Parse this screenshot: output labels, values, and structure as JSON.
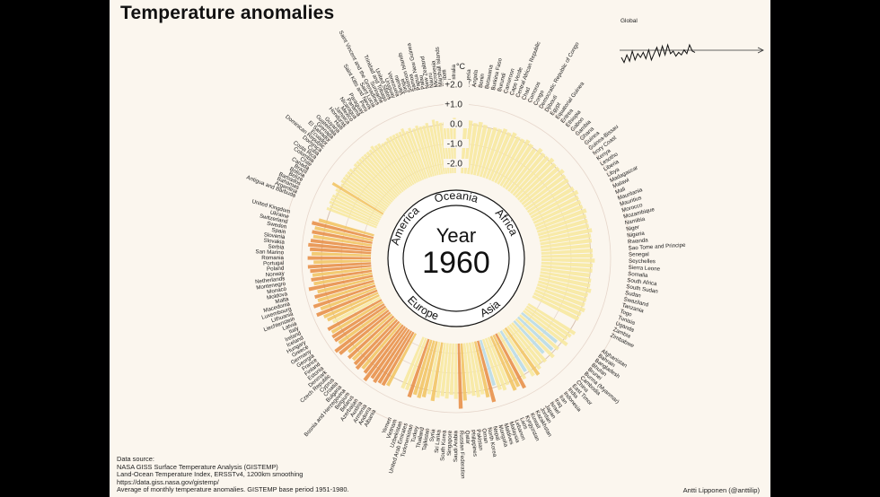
{
  "title": "Temperature anomalies",
  "source": {
    "heading": "Data source:",
    "lines": [
      "NASA GISS Surface Temperature Analysis (GISTEMP)",
      "Land-Ocean Temperature Index, ERSSTv4, 1200km smoothing",
      "https://data.giss.nasa.gov/gistemp/",
      "Average of monthly temperature anomalies. GISTEMP base period 1951-1980."
    ]
  },
  "credit": "Antti Lipponen (@anttilip)",
  "global_label": "Global",
  "colors": {
    "background": "#fbf6ee",
    "warm_light": "#f7e9a0",
    "warm": "#f2c565",
    "hot": "#e8914a",
    "cool": "#b9dce6"
  },
  "chart_data": {
    "type": "radial-bar",
    "center_label": "Year",
    "year": "1960",
    "unit": "°C",
    "ticks": [
      "+2.0",
      "+1.0",
      "0.0",
      "-1.0",
      "-2.0"
    ],
    "tick_values": [
      2,
      1,
      0,
      -1,
      -2
    ],
    "ylim": [
      -2.5,
      2.5
    ],
    "regions": [
      "Oceania",
      "Africa",
      "Asia",
      "Europe",
      "America"
    ],
    "countries": {
      "Oceania": [
        "Vanuatu",
        "Tonga",
        "Solomon Islands",
        "Samoa",
        "Papua New Guinea",
        "Palau",
        "New Zealand",
        "Nauru",
        "Micronesia",
        "Marshall Islands",
        "Kiribati",
        "Fiji",
        "Australia"
      ],
      "Africa": [
        "Algeria",
        "Angola",
        "Benin",
        "Botswana",
        "Burkina Faso",
        "Burundi",
        "Cameroon",
        "Cape Verde",
        "Central African Republic",
        "Chad",
        "Comoros",
        "Congo",
        "Democratic Republic of Congo",
        "Djibouti",
        "Egypt",
        "Equatorial Guinea",
        "Eritrea",
        "Ethiopia",
        "Gabon",
        "Gambia",
        "Ghana",
        "Guinea",
        "Guinea-Bissau",
        "Ivory Coast",
        "Kenya",
        "Lesotho",
        "Liberia",
        "Libya",
        "Madagascar",
        "Malawi",
        "Mali",
        "Mauritania",
        "Mauritius",
        "Morocco",
        "Mozambique",
        "Namibia",
        "Niger",
        "Nigeria",
        "Rwanda",
        "Sao Tome and Principe",
        "Senegal",
        "Seychelles",
        "Sierra Leone",
        "Somalia",
        "South Africa",
        "South Sudan",
        "Sudan",
        "Swaziland",
        "Tanzania",
        "Togo",
        "Tunisia",
        "Uganda",
        "Zambia",
        "Zimbabwe"
      ],
      "Asia": [
        "Afghanistan",
        "Bahrain",
        "Bangladesh",
        "Bhutan",
        "Brunei",
        "Burma (Myanmar)",
        "Cambodia",
        "China",
        "East Timor",
        "India",
        "Indonesia",
        "Iran",
        "Iraq",
        "Israel",
        "Japan",
        "Jordan",
        "Kazakhstan",
        "Kuwait",
        "Kyrgyzstan",
        "Laos",
        "Lebanon",
        "Malaysia",
        "Maldives",
        "Mongolia",
        "Nepal",
        "North Korea",
        "Oman",
        "Pakistan",
        "Philippines",
        "Qatar",
        "Russian Federation",
        "Saudi Arabia",
        "Singapore",
        "South Korea",
        "Sri Lanka",
        "Syria",
        "Tajikistan",
        "Thailand",
        "Turkey",
        "Turkmenistan",
        "United Arab Emirates",
        "Uzbekistan",
        "Vietnam",
        "Yemen"
      ],
      "Europe": [
        "Albania",
        "Andorra",
        "Armenia",
        "Austria",
        "Azerbaijan",
        "Belarus",
        "Belgium",
        "Bosnia and Herzegovina",
        "Bulgaria",
        "Croatia",
        "Cyprus",
        "Czech Republic",
        "Denmark",
        "Estonia",
        "Finland",
        "France",
        "Georgia",
        "Germany",
        "Greece",
        "Hungary",
        "Iceland",
        "Ireland",
        "Italy",
        "Latvia",
        "Liechtenstein",
        "Lithuania",
        "Luxembourg",
        "Macedonia",
        "Malta",
        "Moldova",
        "Monaco",
        "Montenegro",
        "Netherlands",
        "Norway",
        "Poland",
        "Portugal",
        "Romania",
        "San Marino",
        "Serbia",
        "Slovakia",
        "Slovenia",
        "Spain",
        "Sweden",
        "Switzerland",
        "Ukraine",
        "United Kingdom"
      ],
      "America": [
        "Antigua and Barbuda",
        "Argentina",
        "Bahamas",
        "Barbados",
        "Belize",
        "Bolivia",
        "Brazil",
        "Canada",
        "Chile",
        "Colombia",
        "Costa Rica",
        "Cuba",
        "Dominica",
        "Dominican Republic",
        "Ecuador",
        "El Salvador",
        "Grenada",
        "Guatemala",
        "Guyana",
        "Haiti",
        "Honduras",
        "Jamaica",
        "Mexico",
        "Nicaragua",
        "Panama",
        "Paraguay",
        "Peru",
        "Saint Kitts and Nevis",
        "Saint Lucia",
        "Saint Vincent and the Grenadines",
        "Suriname",
        "Trinidad and Tobago",
        "United States",
        "Uruguay",
        "Venezuela"
      ]
    },
    "anomalies_note_values": {
      "Oceania": [
        0.1,
        0.2,
        0.1,
        0.1,
        0.2,
        0.0,
        0.3,
        0.2,
        0.1,
        0.1,
        0.1,
        0.2,
        0.3
      ],
      "Africa": [
        0.1,
        0.2,
        0.1,
        0.2,
        0.1,
        0.0,
        0.1,
        0.1,
        0.2,
        0.1,
        0.2,
        0.1,
        0.1,
        0.2,
        0.1,
        0.0,
        0.2,
        0.1,
        0.1,
        0.2,
        0.1,
        0.1,
        0.2,
        0.1,
        0.1,
        0.0,
        0.1,
        0.2,
        0.1,
        0.1,
        0.1,
        0.2,
        0.1,
        0.1,
        0.1,
        0.2,
        0.1,
        0.1,
        0.0,
        0.1,
        0.1,
        0.2,
        0.1,
        0.1,
        0.0,
        0.1,
        0.1,
        0.2,
        0.1,
        0.1,
        0.1,
        0.2,
        0.1,
        0.1
      ],
      "Asia": [
        0.3,
        0.2,
        0.1,
        0.3,
        -0.2,
        0.1,
        -0.1,
        0.2,
        -0.3,
        0.1,
        0.0,
        0.2,
        0.4,
        0.3,
        -0.1,
        0.2,
        0.6,
        0.4,
        0.5,
        0.1,
        0.3,
        0.2,
        -0.1,
        0.7,
        0.4,
        0.2,
        0.3,
        0.2,
        0.1,
        0.4,
        0.8,
        0.3,
        0.1,
        0.3,
        0.2,
        0.3,
        0.5,
        0.2,
        0.4,
        0.5,
        0.4,
        0.6,
        0.3,
        0.3
      ],
      "Europe": [
        0.5,
        0.6,
        0.6,
        0.7,
        0.6,
        0.9,
        0.6,
        0.5,
        0.7,
        0.6,
        0.5,
        0.6,
        0.4,
        0.8,
        0.9,
        0.5,
        0.6,
        0.6,
        0.5,
        0.6,
        0.2,
        0.4,
        0.5,
        0.8,
        0.5,
        0.8,
        0.5,
        0.6,
        0.4,
        0.8,
        0.5,
        0.6,
        0.5,
        0.6,
        0.7,
        0.4,
        0.7,
        0.5,
        0.6,
        0.7,
        0.6,
        0.5,
        0.6,
        0.5,
        0.7,
        0.4
      ],
      "America": [
        0.2,
        0.1,
        0.2,
        0.2,
        0.2,
        0.1,
        0.2,
        0.5,
        0.1,
        0.2,
        0.2,
        0.2,
        0.2,
        0.2,
        0.1,
        0.2,
        0.2,
        0.2,
        0.2,
        0.2,
        0.2,
        0.2,
        0.3,
        0.2,
        0.2,
        0.1,
        0.1,
        0.2,
        0.2,
        0.2,
        0.2,
        0.2,
        0.3,
        0.1,
        0.2
      ]
    },
    "global_series": [
      0.0,
      -0.4,
      0.2,
      -0.3,
      0.5,
      -0.2,
      0.3,
      0.0,
      0.4,
      -0.1,
      0.6,
      -0.2,
      0.3,
      0.8,
      0.1,
      0.9,
      0.2,
      1.0,
      0.3,
      0.5,
      0.1,
      0.4,
      0.2,
      0.6,
      0.3,
      1.0,
      0.5,
      0.4
    ]
  }
}
